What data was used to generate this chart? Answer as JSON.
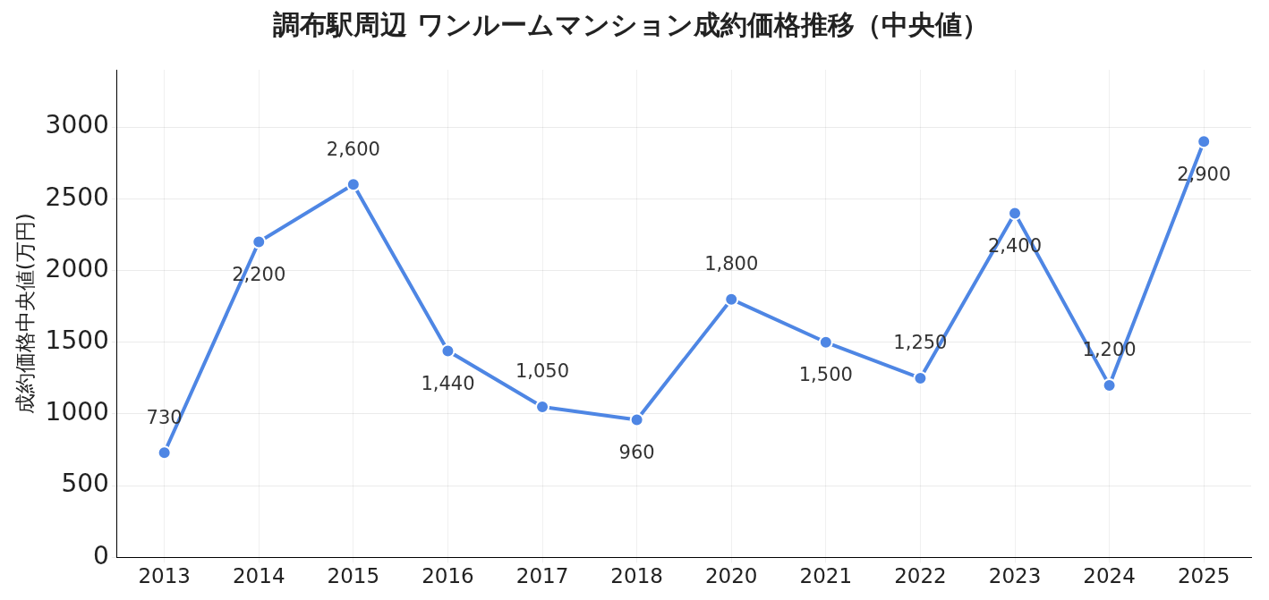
{
  "chart_data": {
    "type": "line",
    "title": "調布駅周辺 ワンルームマンション成約価格推移（中央値）",
    "ylabel": "成約価格中央値(万円)",
    "categories": [
      "2013",
      "2014",
      "2015",
      "2016",
      "2017",
      "2018",
      "2020",
      "2021",
      "2022",
      "2023",
      "2024",
      "2025"
    ],
    "series": [
      {
        "color": "#4e86e4",
        "values": [
          730,
          2200,
          2600,
          1440,
          1050,
          960,
          1800,
          1500,
          1250,
          2400,
          1200,
          2900
        ],
        "value_labels": [
          "730",
          "2,200",
          "2,600",
          "1,440",
          "1,050",
          "960",
          "1,800",
          "1,500",
          "1,250",
          "2,400",
          "1,200",
          "2,900"
        ]
      }
    ],
    "ylim": [
      0,
      3400
    ],
    "yticks": [
      0,
      500,
      1000,
      1500,
      2000,
      2500,
      3000
    ],
    "grid": true,
    "marker": "circle",
    "line_style": "solid",
    "legend": false
  }
}
